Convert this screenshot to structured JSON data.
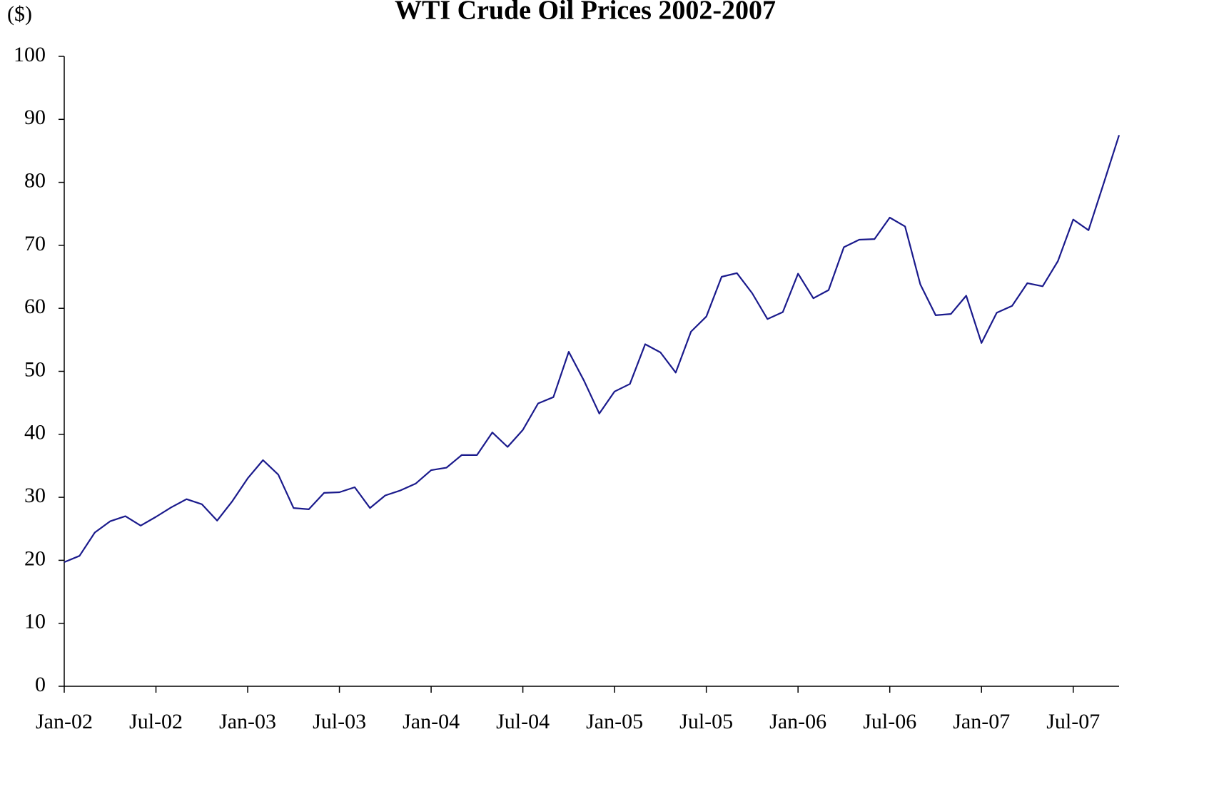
{
  "chart_data": {
    "type": "line",
    "title": "WTI Crude Oil Prices 2002-2007",
    "y_label": "($)",
    "x": [
      "2002-01",
      "2002-02",
      "2002-03",
      "2002-04",
      "2002-05",
      "2002-06",
      "2002-07",
      "2002-08",
      "2002-09",
      "2002-10",
      "2002-11",
      "2002-12",
      "2003-01",
      "2003-02",
      "2003-03",
      "2003-04",
      "2003-05",
      "2003-06",
      "2003-07",
      "2003-08",
      "2003-09",
      "2003-10",
      "2003-11",
      "2003-12",
      "2004-01",
      "2004-02",
      "2004-03",
      "2004-04",
      "2004-05",
      "2004-06",
      "2004-07",
      "2004-08",
      "2004-09",
      "2004-10",
      "2004-11",
      "2004-12",
      "2005-01",
      "2005-02",
      "2005-03",
      "2005-04",
      "2005-05",
      "2005-06",
      "2005-07",
      "2005-08",
      "2005-09",
      "2005-10",
      "2005-11",
      "2005-12",
      "2006-01",
      "2006-02",
      "2006-03",
      "2006-04",
      "2006-05",
      "2006-06",
      "2006-07",
      "2006-08",
      "2006-09",
      "2006-10",
      "2006-11",
      "2006-12",
      "2007-01",
      "2007-02",
      "2007-03",
      "2007-04",
      "2007-05",
      "2007-06",
      "2007-07",
      "2007-08",
      "2007-09",
      "2007-10"
    ],
    "series": [
      {
        "name": "WTI",
        "color": "#1a1a8c",
        "values": [
          19.7,
          20.7,
          24.4,
          26.2,
          27.0,
          25.5,
          26.9,
          28.4,
          29.7,
          28.9,
          26.3,
          29.4,
          33.0,
          35.9,
          33.6,
          28.3,
          28.1,
          30.7,
          30.8,
          31.6,
          28.3,
          30.3,
          31.1,
          32.2,
          34.3,
          34.7,
          36.7,
          36.7,
          40.3,
          38.0,
          40.7,
          44.9,
          45.9,
          53.1,
          48.5,
          43.3,
          46.8,
          48.0,
          54.3,
          53.0,
          49.8,
          56.3,
          58.7,
          65.0,
          65.6,
          62.4,
          58.3,
          59.4,
          65.5,
          61.6,
          62.9,
          69.7,
          70.9,
          71.0,
          74.4,
          73.0,
          63.8,
          58.9,
          59.1,
          62.0,
          54.5,
          59.3,
          60.4,
          64.0,
          63.5,
          67.5,
          74.1,
          72.4,
          79.9,
          87.5
        ]
      }
    ],
    "xlim": [
      "2002-01",
      "2007-10"
    ],
    "xticks": [
      {
        "value": "2002-01",
        "label": "Jan-02"
      },
      {
        "value": "2002-07",
        "label": "Jul-02"
      },
      {
        "value": "2003-01",
        "label": "Jan-03"
      },
      {
        "value": "2003-07",
        "label": "Jul-03"
      },
      {
        "value": "2004-01",
        "label": "Jan-04"
      },
      {
        "value": "2004-07",
        "label": "Jul-04"
      },
      {
        "value": "2005-01",
        "label": "Jan-05"
      },
      {
        "value": "2005-07",
        "label": "Jul-05"
      },
      {
        "value": "2006-01",
        "label": "Jan-06"
      },
      {
        "value": "2006-07",
        "label": "Jul-06"
      },
      {
        "value": "2007-01",
        "label": "Jan-07"
      },
      {
        "value": "2007-07",
        "label": "Jul-07"
      }
    ],
    "ylim": [
      0,
      100
    ],
    "yticks": [
      0,
      10,
      20,
      30,
      40,
      50,
      60,
      70,
      80,
      90,
      100
    ],
    "grid": false
  }
}
